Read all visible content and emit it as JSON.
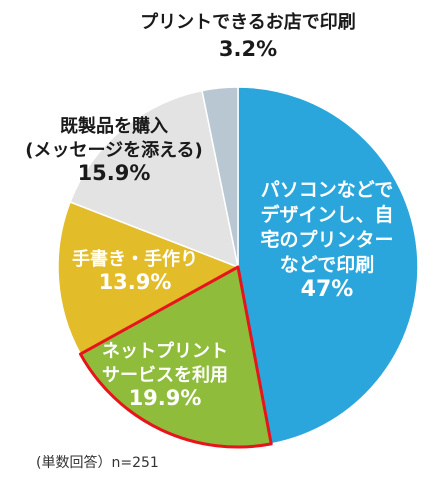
{
  "chart_data": {
    "type": "pie",
    "start_angle_deg": 0,
    "direction": "clockwise",
    "slices": [
      {
        "label_lines": [
          "パソコンなどで",
          "デザインし、自",
          "宅のプリンター",
          "などで印刷"
        ],
        "value": 47,
        "value_label": "47%",
        "color": "#2aa6dd",
        "highlight": false,
        "label_style": "white"
      },
      {
        "label_lines": [
          "ネットプリント",
          "サービスを利用"
        ],
        "value": 19.9,
        "value_label": "19.9%",
        "color": "#8fbd3b",
        "highlight": true,
        "label_style": "white"
      },
      {
        "label_lines": [
          "手書き・手作り"
        ],
        "value": 13.9,
        "value_label": "13.9%",
        "color": "#e3bc2a",
        "highlight": false,
        "label_style": "white"
      },
      {
        "label_lines": [
          "既製品を購入",
          "(メッセージを添える)"
        ],
        "value": 15.9,
        "value_label": "15.9%",
        "color": "#e3e3e3",
        "highlight": false,
        "label_style": "dark"
      },
      {
        "label_lines": [
          "プリントできるお店で印刷"
        ],
        "value": 3.2,
        "value_label": "3.2%",
        "color": "#b8c7d2",
        "highlight": false,
        "label_style": "dark"
      }
    ],
    "highlight_color": "#e8141c"
  },
  "footnote": "(単数回答）n=251"
}
